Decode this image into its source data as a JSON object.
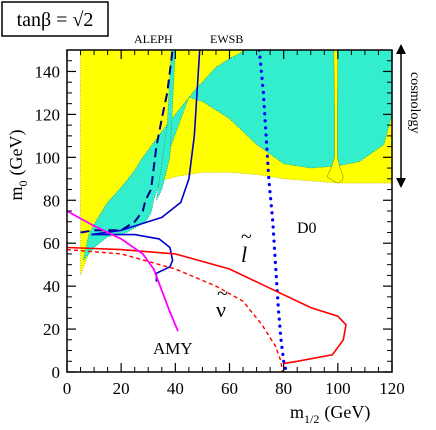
{
  "badge": {
    "text": "tanβ = √2"
  },
  "chart_data": {
    "type": "area",
    "xlabel_main": "m",
    "xlabel_sub": "1/2",
    "xlabel_unit": "(GeV)",
    "ylabel_main": "m",
    "ylabel_sub": "0",
    "ylabel_unit": "(GeV)",
    "xlim": [
      0,
      120
    ],
    "ylim": [
      0,
      150
    ],
    "xticks": [
      0,
      20,
      40,
      60,
      80,
      100,
      120
    ],
    "yticks": [
      0,
      20,
      40,
      60,
      80,
      100,
      120,
      140
    ],
    "colors": {
      "yellow_region": "#ffff00",
      "cyan_region": "#33eecc",
      "aleph": "#000080",
      "ewsb": "#0000cc",
      "d0": "#0000ff",
      "slepton": "#ff0000",
      "sneutrino": "#ff0000",
      "amy": "#ff00ff"
    },
    "regions": {
      "yellow": [
        [
          5,
          150
        ],
        [
          5,
          45
        ],
        [
          8,
          55
        ],
        [
          12,
          62
        ],
        [
          18,
          70
        ],
        [
          24,
          77
        ],
        [
          28,
          82
        ],
        [
          32,
          88
        ],
        [
          40,
          91
        ],
        [
          50,
          93
        ],
        [
          60,
          93
        ],
        [
          70,
          92
        ],
        [
          80,
          90
        ],
        [
          100,
          88
        ],
        [
          120,
          88
        ],
        [
          120,
          150
        ]
      ],
      "cyan_main": [
        [
          6,
          52
        ],
        [
          8,
          64
        ],
        [
          11,
          71
        ],
        [
          15,
          79
        ],
        [
          20,
          86
        ],
        [
          25,
          94
        ],
        [
          28,
          100
        ],
        [
          35,
          112
        ],
        [
          40,
          120
        ],
        [
          47,
          131
        ],
        [
          55,
          142
        ],
        [
          60,
          146
        ],
        [
          66,
          150
        ],
        [
          120,
          150
        ],
        [
          120,
          120
        ],
        [
          117,
          106
        ],
        [
          108,
          98
        ],
        [
          100,
          96
        ],
        [
          90,
          95
        ],
        [
          80,
          97
        ],
        [
          70,
          106
        ],
        [
          60,
          118
        ],
        [
          50,
          126
        ],
        [
          45,
          128
        ],
        [
          38,
          104
        ],
        [
          32,
          80
        ],
        [
          31,
          74
        ],
        [
          29,
          70
        ],
        [
          22,
          65
        ],
        [
          15,
          63
        ],
        [
          10,
          58
        ]
      ],
      "cyan_strip": [
        [
          37,
          115
        ],
        [
          38.5,
          150
        ],
        [
          40,
          150
        ],
        [
          38,
          100
        ],
        [
          35,
          85
        ],
        [
          33,
          80
        ]
      ]
    },
    "notch": [
      [
        98.5,
        150
      ],
      [
        98.8,
        120
      ],
      [
        98.8,
        100
      ],
      [
        97.5,
        95
      ],
      [
        96,
        91
      ],
      [
        98.5,
        89
      ],
      [
        100,
        88
      ],
      [
        101.5,
        89
      ],
      [
        102,
        91
      ],
      [
        100.8,
        95
      ],
      [
        99.8,
        100
      ],
      [
        99.8,
        120
      ],
      [
        100,
        150
      ]
    ],
    "lines": {
      "aleph": [
        [
          5,
          65
        ],
        [
          10,
          66
        ],
        [
          20,
          66
        ],
        [
          25,
          70
        ],
        [
          28,
          75
        ],
        [
          29,
          80
        ],
        [
          31,
          85
        ],
        [
          32,
          95
        ],
        [
          33,
          105
        ],
        [
          35,
          118
        ],
        [
          37,
          130
        ],
        [
          38,
          140
        ],
        [
          39,
          150
        ]
      ],
      "ewsb_upper": [
        [
          9,
          64
        ],
        [
          20,
          66
        ],
        [
          35,
          72
        ],
        [
          42,
          79
        ],
        [
          45,
          90
        ],
        [
          47,
          110
        ],
        [
          48,
          130
        ],
        [
          49,
          150
        ]
      ],
      "ewsb_lower": [
        [
          33,
          42
        ],
        [
          33,
          46
        ],
        [
          38,
          49
        ],
        [
          39,
          52
        ],
        [
          38,
          58
        ],
        [
          34,
          62
        ],
        [
          25,
          64
        ],
        [
          9,
          64
        ]
      ],
      "d0": [
        [
          71,
          150
        ],
        [
          72.5,
          130
        ],
        [
          73.5,
          110
        ],
        [
          74.5,
          90
        ],
        [
          76,
          70
        ],
        [
          77,
          50
        ],
        [
          78,
          30
        ],
        [
          79,
          15
        ],
        [
          80,
          5
        ],
        [
          81,
          0
        ]
      ],
      "slepton": [
        [
          0,
          58
        ],
        [
          20,
          57
        ],
        [
          40,
          55
        ],
        [
          60,
          48
        ],
        [
          75,
          39
        ],
        [
          90,
          30
        ],
        [
          100,
          26
        ],
        [
          103,
          22
        ],
        [
          102,
          15
        ],
        [
          98,
          8
        ],
        [
          85,
          5
        ],
        [
          80,
          4
        ]
      ],
      "sneutrino": [
        [
          0,
          57
        ],
        [
          20,
          55
        ],
        [
          40,
          48
        ],
        [
          55,
          40
        ],
        [
          65,
          33
        ],
        [
          72,
          22
        ],
        [
          77,
          12
        ],
        [
          79,
          5
        ],
        [
          79.5,
          0
        ]
      ],
      "amy": [
        [
          0,
          75
        ],
        [
          10,
          68
        ],
        [
          20,
          62
        ],
        [
          28,
          55
        ],
        [
          32,
          48
        ],
        [
          35,
          38
        ],
        [
          38,
          28
        ],
        [
          41,
          19
        ]
      ]
    },
    "labels": {
      "aleph": "ALEPH",
      "ewsb": "EWSB",
      "d0": "D0",
      "slepton": "l",
      "sneutrino": "ν",
      "amy": "AMY",
      "cosmology": "cosmology"
    }
  }
}
